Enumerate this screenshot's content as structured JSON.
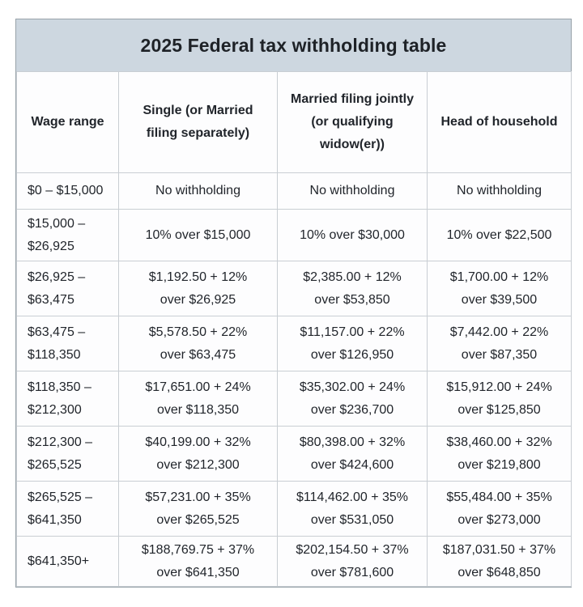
{
  "title": "2025 Federal tax withholding table",
  "table": {
    "columns": [
      "Wage range",
      "Single (or Married\nfiling separately)",
      "Married filing jointly\n(or qualifying\nwidow(er))",
      "Head of household"
    ],
    "rows": [
      {
        "wage": "$0 – $15,000",
        "single": "No withholding",
        "married_jointly": "No withholding",
        "head_of_household": "No withholding"
      },
      {
        "wage": "$15,000 –\n$26,925",
        "single": "10% over $15,000",
        "married_jointly": "10% over $30,000",
        "head_of_household": "10% over $22,500"
      },
      {
        "wage": "$26,925 –\n$63,475",
        "single": "$1,192.50 + 12%\nover $26,925",
        "married_jointly": "$2,385.00 + 12%\nover $53,850",
        "head_of_household": "$1,700.00 + 12%\nover $39,500"
      },
      {
        "wage": "$63,475 –\n$118,350",
        "single": "$5,578.50 + 22%\nover $63,475",
        "married_jointly": "$11,157.00 + 22%\nover $126,950",
        "head_of_household": "$7,442.00 + 22%\nover $87,350"
      },
      {
        "wage": "$118,350 –\n$212,300",
        "single": "$17,651.00 + 24%\nover $118,350",
        "married_jointly": "$35,302.00 + 24%\nover $236,700",
        "head_of_household": "$15,912.00 + 24%\nover $125,850"
      },
      {
        "wage": "$212,300 –\n$265,525",
        "single": "$40,199.00 + 32%\nover $212,300",
        "married_jointly": "$80,398.00 + 32%\nover $424,600",
        "head_of_household": "$38,460.00 + 32%\nover $219,800"
      },
      {
        "wage": "$265,525 –\n$641,350",
        "single": "$57,231.00 + 35%\nover $265,525",
        "married_jointly": "$114,462.00 + 35%\nover $531,050",
        "head_of_household": "$55,484.00 + 35%\nover $273,000"
      },
      {
        "wage": "$641,350+",
        "single": "$188,769.75 + 37%\nover $641,350",
        "married_jointly": "$202,154.50 + 37%\nover $781,600",
        "head_of_household": "$187,031.50 + 37%\nover $648,850"
      }
    ]
  },
  "colors": {
    "title_bar_bg": "#cdd7e0",
    "cell_bg": "#fdfdfe",
    "inner_border": "#c9ced3",
    "outer_border": "#98a2a9",
    "text": "#21252b"
  }
}
